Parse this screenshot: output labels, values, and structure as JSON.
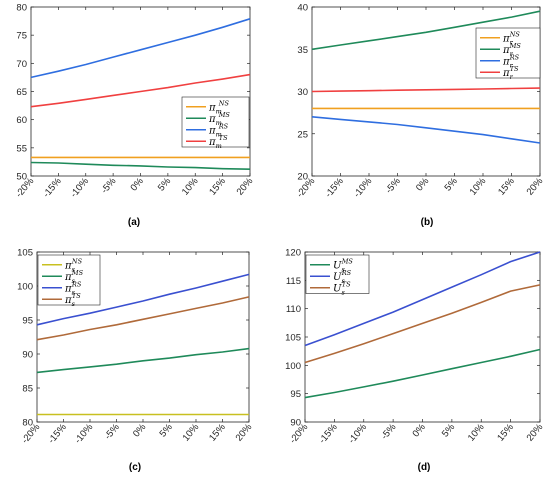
{
  "chart_data": [
    {
      "id": "a",
      "type": "line",
      "caption": "(a)",
      "x": [
        "-20%",
        "-15%",
        "-10%",
        "-5%",
        "0%",
        "5%",
        "10%",
        "15%",
        "20%"
      ],
      "yticks": [
        50,
        55,
        60,
        65,
        70,
        75,
        80
      ],
      "ylim": [
        50,
        80
      ],
      "grid": false,
      "legend_position": "center-right",
      "series": [
        {
          "name": "NS",
          "base": "π",
          "sub": "m",
          "color": "#f0a020",
          "values": [
            53.3,
            53.3,
            53.3,
            53.3,
            53.3,
            53.3,
            53.3,
            53.3,
            53.3
          ]
        },
        {
          "name": "MS",
          "base": "π",
          "sub": "m",
          "color": "#1f8a5a",
          "values": [
            52.4,
            52.3,
            52.1,
            51.9,
            51.8,
            51.6,
            51.5,
            51.3,
            51.2
          ]
        },
        {
          "name": "RS",
          "base": "π",
          "sub": "m",
          "color": "#2f6ee0",
          "values": [
            67.5,
            68.6,
            69.8,
            71.1,
            72.4,
            73.7,
            75.0,
            76.4,
            77.9
          ]
        },
        {
          "name": "TS",
          "base": "π",
          "sub": "m",
          "color": "#f04040",
          "values": [
            62.3,
            62.9,
            63.6,
            64.3,
            65.0,
            65.7,
            66.5,
            67.2,
            68.0
          ]
        }
      ]
    },
    {
      "id": "b",
      "type": "line",
      "caption": "(b)",
      "x": [
        "-20%",
        "-15%",
        "-10%",
        "-5%",
        "0%",
        "5%",
        "10%",
        "15%",
        "20%"
      ],
      "yticks": [
        20,
        25,
        30,
        35,
        40
      ],
      "ylim": [
        20,
        40
      ],
      "grid": false,
      "legend_position": "top-right",
      "series": [
        {
          "name": "NS",
          "base": "π",
          "sub": "r",
          "color": "#f0a020",
          "values": [
            28.0,
            28.0,
            28.0,
            28.0,
            28.0,
            28.0,
            28.0,
            28.0,
            28.0
          ]
        },
        {
          "name": "MS",
          "base": "π",
          "sub": "r",
          "color": "#1f8a5a",
          "values": [
            35.0,
            35.5,
            36.0,
            36.5,
            37.0,
            37.6,
            38.2,
            38.8,
            39.5
          ]
        },
        {
          "name": "RS",
          "base": "π",
          "sub": "r",
          "color": "#2f6ee0",
          "values": [
            27.0,
            26.7,
            26.4,
            26.1,
            25.7,
            25.3,
            24.9,
            24.4,
            23.9
          ]
        },
        {
          "name": "TS",
          "base": "π",
          "sub": "r",
          "color": "#f04040",
          "values": [
            30.0,
            30.05,
            30.1,
            30.15,
            30.2,
            30.25,
            30.3,
            30.35,
            30.4
          ]
        }
      ]
    },
    {
      "id": "c",
      "type": "line",
      "caption": "(c)",
      "x": [
        "-20%",
        "-15%",
        "-10%",
        "-5%",
        "0%",
        "5%",
        "10%",
        "15%",
        "20%"
      ],
      "yticks": [
        80,
        85,
        90,
        95,
        100,
        105
      ],
      "ylim": [
        80,
        105
      ],
      "grid": false,
      "legend_position": "top-left",
      "series": [
        {
          "name": "NS",
          "base": "π",
          "sub": "s",
          "color": "#c8c020",
          "values": [
            81.1,
            81.1,
            81.1,
            81.1,
            81.1,
            81.1,
            81.1,
            81.1,
            81.1
          ]
        },
        {
          "name": "MS",
          "base": "π",
          "sub": "s",
          "color": "#1f8a5a",
          "values": [
            87.3,
            87.7,
            88.1,
            88.5,
            89.0,
            89.4,
            89.9,
            90.3,
            90.8
          ]
        },
        {
          "name": "RS",
          "base": "π",
          "sub": "s",
          "color": "#3a50d0",
          "values": [
            94.3,
            95.2,
            96.0,
            96.9,
            97.8,
            98.8,
            99.7,
            100.7,
            101.7
          ]
        },
        {
          "name": "TS",
          "base": "π",
          "sub": "s",
          "color": "#b06a3a",
          "values": [
            92.1,
            92.8,
            93.6,
            94.3,
            95.1,
            95.9,
            96.7,
            97.5,
            98.4
          ]
        }
      ]
    },
    {
      "id": "d",
      "type": "line",
      "caption": "(d)",
      "x": [
        "-20%",
        "-15%",
        "-10%",
        "-5%",
        "0%",
        "5%",
        "10%",
        "15%",
        "20%"
      ],
      "yticks": [
        90,
        95,
        100,
        105,
        110,
        115,
        120
      ],
      "ylim": [
        90,
        120
      ],
      "grid": false,
      "legend_position": "top-left",
      "series": [
        {
          "name": "MS",
          "base": "U",
          "sub": "s",
          "color": "#1f8a5a",
          "values": [
            94.3,
            95.2,
            96.2,
            97.2,
            98.3,
            99.4,
            100.5,
            101.6,
            102.8
          ]
        },
        {
          "name": "RS",
          "base": "U",
          "sub": "s",
          "color": "#3a50d0",
          "values": [
            103.5,
            105.4,
            107.4,
            109.4,
            111.6,
            113.8,
            116.0,
            118.3,
            120.0
          ]
        },
        {
          "name": "TS",
          "base": "U",
          "sub": "s",
          "color": "#b06a3a",
          "values": [
            100.5,
            102.1,
            103.8,
            105.6,
            107.4,
            109.2,
            111.1,
            113.1,
            114.2
          ]
        }
      ]
    }
  ]
}
